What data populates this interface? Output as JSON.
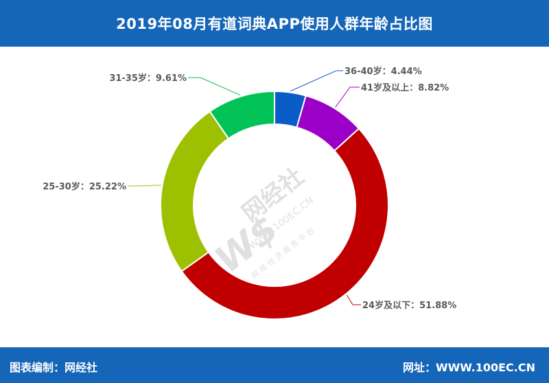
{
  "header": {
    "title": "2019年08月有道词典APP使用人群年龄占比图"
  },
  "footer": {
    "left_text": "图表编制：网经社",
    "right_text": "网址：WWW.100EC.CN"
  },
  "watermark": {
    "brand": "网经社",
    "url": "WWW.100EC.CN",
    "tagline": "网 络 经 济 服 务 平 台"
  },
  "chart_data": {
    "type": "pie",
    "style": "donut",
    "title": "2019年08月有道词典APP使用人群年龄占比图",
    "slices": [
      {
        "label": "36-40岁",
        "value": 4.44,
        "display": "36-40岁：4.44%",
        "color": "#0a5cc7"
      },
      {
        "label": "41岁及以上",
        "value": 8.82,
        "display": "41岁及以上：8.82%",
        "color": "#9b00c8"
      },
      {
        "label": "24岁及以下",
        "value": 51.88,
        "display": "24岁及以下：51.88%",
        "color": "#c00000"
      },
      {
        "label": "25-30岁",
        "value": 25.22,
        "display": "25-30岁：25.22%",
        "color": "#9dc000"
      },
      {
        "label": "31-35岁",
        "value": 9.61,
        "display": "31-35岁：9.61%",
        "color": "#00c257"
      }
    ]
  }
}
